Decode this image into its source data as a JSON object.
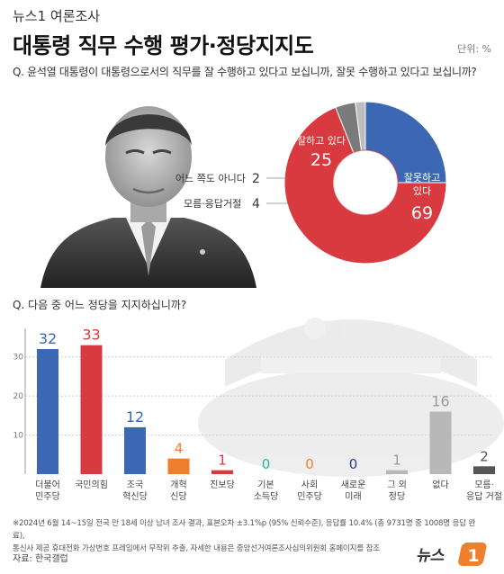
{
  "header": {
    "source_tag": "뉴스1 여론조사",
    "title": "대통령 직무 수행 평가·정당지지도",
    "unit": "단위: %"
  },
  "question1": "Q. 윤석열 대통령이 대통령으로서의 직무를 잘 수행하고 있다고 보십니까, 잘못 수행하고 있다고 보십니까?",
  "question2": "Q. 다음 중 어느 정당을 지지하십니까?",
  "footer": {
    "note_line1": "※2024년 6월 14~15일 전국 만 18세 이상 남녀 조사 결과, 표본오차 ±3.1%p (95% 신뢰수준), 응답률 10.4% (총 9731명 중 1008명 응답 완료),",
    "note_line2": "통신사 제공 휴대전화 가상번호 프레임에서 무작위 추출, 자세한 내용은 중앙선거여론조사심의위원회 홈페이지를 참조",
    "credit": "자료: 한국갤럽",
    "logo_text": "뉴스",
    "logo_num": "1"
  },
  "chart_data": [
    {
      "type": "pie",
      "slices": [
        {
          "label": "잘하고 있다",
          "value": 25,
          "color": "#3b67b5"
        },
        {
          "label": "잘못하고 있다",
          "value": 69,
          "color": "#d83a3f"
        },
        {
          "label": "모름·응답거절",
          "value": 4,
          "color": "#7a7a7a"
        },
        {
          "label": "어느 쪽도 아니다",
          "value": 2,
          "color": "#bdbdbd"
        }
      ],
      "inside_label_top": "잘하고 있다",
      "inside_label_red_line1": "잘못하고",
      "inside_label_red_line2": "있다"
    },
    {
      "type": "bar",
      "categories": [
        {
          "line1": "더불어",
          "line2": "민주당"
        },
        {
          "line1": "국민의힘",
          "line2": ""
        },
        {
          "line1": "조국",
          "line2": "혁신당"
        },
        {
          "line1": "개혁",
          "line2": "신당"
        },
        {
          "line1": "진보당",
          "line2": ""
        },
        {
          "line1": "기본",
          "line2": "소득당"
        },
        {
          "line1": "사회",
          "line2": "민주당"
        },
        {
          "line1": "새로운",
          "line2": "미래"
        },
        {
          "line1": "그 외",
          "line2": "정당"
        },
        {
          "line1": "없다",
          "line2": ""
        },
        {
          "line1": "모름·",
          "line2": "응답 거절"
        }
      ],
      "values": [
        32,
        33,
        12,
        4,
        1,
        0,
        0,
        0,
        1,
        16,
        2
      ],
      "colors": [
        "#3b67b5",
        "#d83a3f",
        "#3b67b5",
        "#f07f2d",
        "#d83a3f",
        "#2bb3a5",
        "#f07f2d",
        "#2b3f86",
        "#b8b8b8",
        "#b8b8b8",
        "#555555"
      ],
      "yticks": [
        10,
        20,
        30
      ],
      "ylim": [
        0,
        35
      ]
    }
  ]
}
